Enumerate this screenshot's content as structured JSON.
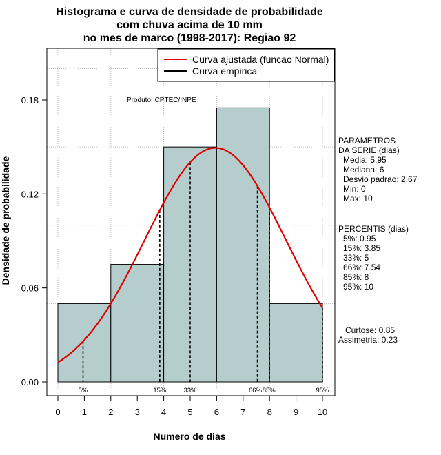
{
  "chart_data": {
    "type": "bar",
    "title_lines": [
      "Histograma e curva de densidade de probabilidade",
      "com chuva acima de 10 mm",
      "no mes de marco (1998-2017): Regiao 92"
    ],
    "xlabel": "Numero de dias",
    "ylabel": "Densidade de probabilidade",
    "xlim": [
      0,
      10
    ],
    "ylim": [
      0,
      0.21
    ],
    "x_ticks": [
      "0",
      "1",
      "2",
      "3",
      "4",
      "5",
      "6",
      "7",
      "8",
      "9",
      "10"
    ],
    "y_ticks": [
      "0.00",
      "0.06",
      "0.12",
      "0.18"
    ],
    "y_tick_values": [
      0,
      0.06,
      0.12,
      0.18
    ],
    "y_grid_values": [
      0.05,
      0.1,
      0.15,
      0.2
    ],
    "grid": true,
    "bins": [
      {
        "start": 0,
        "end": 2,
        "density": 0.05
      },
      {
        "start": 2,
        "end": 4,
        "density": 0.075
      },
      {
        "start": 4,
        "end": 6,
        "density": 0.15
      },
      {
        "start": 6,
        "end": 8,
        "density": 0.175
      },
      {
        "start": 8,
        "end": 10,
        "density": 0.05
      }
    ],
    "fitted_curve": {
      "name": "Curva ajustada (funcao Normal)",
      "mean": 5.95,
      "sd": 2.67,
      "color": "#e00000"
    },
    "empirical_curve": {
      "name": "Curva empirica",
      "color": "#000000"
    },
    "legend_position": "top-right",
    "annotation": "Produto: CPTEC/INPE",
    "percentile_markers": [
      {
        "label": "5%",
        "x": 0.95
      },
      {
        "label": "15%",
        "x": 3.85
      },
      {
        "label": "33%",
        "x": 5
      },
      {
        "label": "66%",
        "x": 7.54
      },
      {
        "label": "85%",
        "x": 8
      },
      {
        "label": "95%",
        "x": 10
      }
    ],
    "bar_fill": "#b5cdcc"
  },
  "side_panel": {
    "params_title": [
      "PARAMETROS",
      "DA SERIE (dias)"
    ],
    "params": [
      "Media: 5.95",
      "Mediana: 6",
      "Desvio padrao: 2.67",
      "Min: 0",
      "Max: 10"
    ],
    "percentis_title": "PERCENTIS (dias)",
    "percentis": [
      "5%: 0.95",
      "15%: 3.85",
      "33%: 5",
      "66%: 7.54",
      "85%: 8",
      "95%: 10"
    ],
    "stats": [
      "Curtose: 0.85",
      "Assimetria: 0.23"
    ]
  }
}
